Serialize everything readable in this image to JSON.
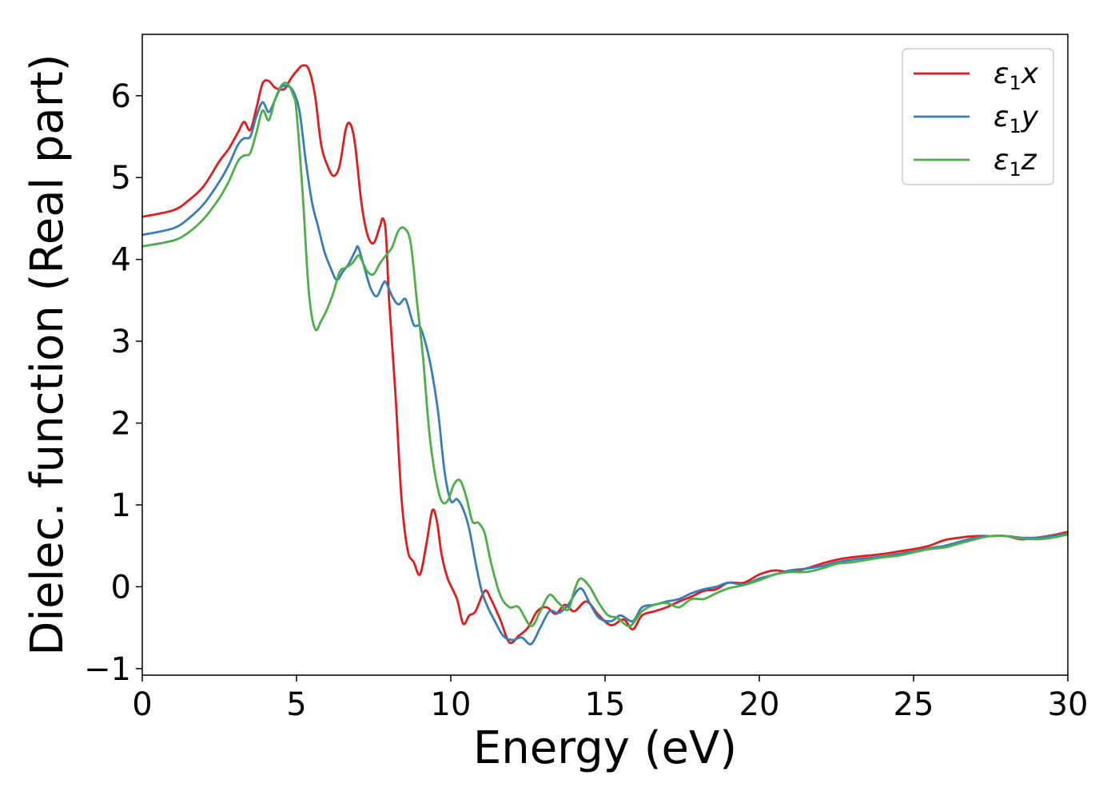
{
  "chart_data": {
    "type": "line",
    "xlabel": "Energy (eV)",
    "ylabel": "Dielec. function (Real part)",
    "xlim": [
      0,
      30
    ],
    "ylim": [
      -1.08,
      6.75
    ],
    "xticks": [
      0,
      5,
      10,
      15,
      20,
      25,
      30
    ],
    "yticks": [
      -1,
      0,
      1,
      2,
      3,
      4,
      5,
      6
    ],
    "xtick_labels": [
      "0",
      "5",
      "10",
      "15",
      "20",
      "25",
      "30"
    ],
    "ytick_labels": [
      "−1",
      "0",
      "1",
      "2",
      "3",
      "4",
      "5",
      "6"
    ],
    "grid": false,
    "legend_position": "top-right",
    "series": [
      {
        "name": "ε1x",
        "legend": {
          "base": "ε",
          "sub": "1",
          "tail": "x"
        },
        "color": "#e41a1c",
        "points": [
          [
            0,
            4.52
          ],
          [
            1.0,
            4.6
          ],
          [
            1.5,
            4.72
          ],
          [
            2.0,
            4.9
          ],
          [
            2.5,
            5.2
          ],
          [
            2.8,
            5.35
          ],
          [
            3.1,
            5.55
          ],
          [
            3.3,
            5.68
          ],
          [
            3.5,
            5.58
          ],
          [
            3.7,
            5.85
          ],
          [
            3.9,
            6.15
          ],
          [
            4.1,
            6.18
          ],
          [
            4.3,
            6.1
          ],
          [
            4.6,
            6.08
          ],
          [
            4.8,
            6.2
          ],
          [
            5.0,
            6.3
          ],
          [
            5.2,
            6.37
          ],
          [
            5.4,
            6.32
          ],
          [
            5.6,
            6.0
          ],
          [
            5.8,
            5.4
          ],
          [
            6.0,
            5.15
          ],
          [
            6.2,
            5.02
          ],
          [
            6.4,
            5.15
          ],
          [
            6.6,
            5.6
          ],
          [
            6.75,
            5.65
          ],
          [
            6.9,
            5.4
          ],
          [
            7.1,
            4.7
          ],
          [
            7.3,
            4.3
          ],
          [
            7.5,
            4.2
          ],
          [
            7.7,
            4.4
          ],
          [
            7.8,
            4.5
          ],
          [
            7.9,
            4.3
          ],
          [
            8.0,
            3.5
          ],
          [
            8.2,
            2.4
          ],
          [
            8.4,
            1.1
          ],
          [
            8.6,
            0.45
          ],
          [
            8.8,
            0.3
          ],
          [
            9.0,
            0.15
          ],
          [
            9.2,
            0.5
          ],
          [
            9.4,
            0.93
          ],
          [
            9.55,
            0.8
          ],
          [
            9.7,
            0.4
          ],
          [
            9.9,
            0.1
          ],
          [
            10.2,
            -0.15
          ],
          [
            10.4,
            -0.45
          ],
          [
            10.6,
            -0.35
          ],
          [
            10.8,
            -0.3
          ],
          [
            11.1,
            -0.05
          ],
          [
            11.3,
            -0.15
          ],
          [
            11.6,
            -0.4
          ],
          [
            11.9,
            -0.68
          ],
          [
            12.2,
            -0.6
          ],
          [
            12.5,
            -0.5
          ],
          [
            12.8,
            -0.3
          ],
          [
            13.1,
            -0.25
          ],
          [
            13.4,
            -0.33
          ],
          [
            13.7,
            -0.22
          ],
          [
            14.0,
            -0.3
          ],
          [
            14.4,
            -0.18
          ],
          [
            14.8,
            -0.35
          ],
          [
            15.2,
            -0.47
          ],
          [
            15.6,
            -0.4
          ],
          [
            15.9,
            -0.52
          ],
          [
            16.2,
            -0.35
          ],
          [
            16.6,
            -0.3
          ],
          [
            17.0,
            -0.25
          ],
          [
            17.4,
            -0.18
          ],
          [
            17.8,
            -0.12
          ],
          [
            18.2,
            -0.05
          ],
          [
            18.6,
            -0.03
          ],
          [
            19.0,
            0.05
          ],
          [
            19.5,
            0.05
          ],
          [
            20.0,
            0.15
          ],
          [
            20.5,
            0.2
          ],
          [
            21.0,
            0.18
          ],
          [
            21.5,
            0.22
          ],
          [
            22.0,
            0.28
          ],
          [
            22.5,
            0.33
          ],
          [
            23.0,
            0.36
          ],
          [
            23.5,
            0.38
          ],
          [
            24.0,
            0.4
          ],
          [
            24.5,
            0.43
          ],
          [
            25.0,
            0.46
          ],
          [
            25.5,
            0.5
          ],
          [
            26.0,
            0.57
          ],
          [
            26.5,
            0.6
          ],
          [
            27.0,
            0.62
          ],
          [
            27.5,
            0.62
          ],
          [
            28.0,
            0.62
          ],
          [
            28.5,
            0.58
          ],
          [
            29.0,
            0.6
          ],
          [
            29.5,
            0.63
          ],
          [
            30.0,
            0.67
          ]
        ]
      },
      {
        "name": "ε1y",
        "legend": {
          "base": "ε",
          "sub": "1",
          "tail": "y"
        },
        "color": "#377eb8",
        "points": [
          [
            0,
            4.3
          ],
          [
            1.0,
            4.38
          ],
          [
            1.5,
            4.5
          ],
          [
            2.0,
            4.68
          ],
          [
            2.5,
            4.95
          ],
          [
            2.8,
            5.15
          ],
          [
            3.1,
            5.4
          ],
          [
            3.3,
            5.48
          ],
          [
            3.5,
            5.5
          ],
          [
            3.7,
            5.75
          ],
          [
            3.9,
            5.92
          ],
          [
            4.1,
            5.8
          ],
          [
            4.3,
            5.95
          ],
          [
            4.5,
            6.1
          ],
          [
            4.7,
            6.12
          ],
          [
            4.9,
            6.05
          ],
          [
            5.1,
            5.8
          ],
          [
            5.3,
            5.2
          ],
          [
            5.5,
            4.7
          ],
          [
            5.7,
            4.4
          ],
          [
            5.9,
            4.1
          ],
          [
            6.1,
            3.9
          ],
          [
            6.3,
            3.75
          ],
          [
            6.5,
            3.85
          ],
          [
            6.7,
            3.95
          ],
          [
            6.9,
            4.1
          ],
          [
            7.0,
            4.15
          ],
          [
            7.2,
            3.9
          ],
          [
            7.4,
            3.65
          ],
          [
            7.6,
            3.55
          ],
          [
            7.8,
            3.7
          ],
          [
            7.9,
            3.72
          ],
          [
            8.1,
            3.55
          ],
          [
            8.3,
            3.45
          ],
          [
            8.5,
            3.52
          ],
          [
            8.6,
            3.45
          ],
          [
            8.8,
            3.2
          ],
          [
            9.0,
            3.18
          ],
          [
            9.2,
            2.95
          ],
          [
            9.4,
            2.6
          ],
          [
            9.6,
            2.1
          ],
          [
            9.8,
            1.4
          ],
          [
            10.0,
            1.05
          ],
          [
            10.2,
            1.07
          ],
          [
            10.4,
            0.95
          ],
          [
            10.6,
            0.7
          ],
          [
            10.8,
            0.3
          ],
          [
            11.0,
            -0.05
          ],
          [
            11.2,
            -0.25
          ],
          [
            11.4,
            -0.4
          ],
          [
            11.7,
            -0.6
          ],
          [
            12.0,
            -0.65
          ],
          [
            12.3,
            -0.62
          ],
          [
            12.6,
            -0.7
          ],
          [
            12.9,
            -0.5
          ],
          [
            13.2,
            -0.3
          ],
          [
            13.5,
            -0.32
          ],
          [
            13.8,
            -0.22
          ],
          [
            14.2,
            -0.02
          ],
          [
            14.5,
            -0.2
          ],
          [
            14.8,
            -0.38
          ],
          [
            15.2,
            -0.42
          ],
          [
            15.5,
            -0.35
          ],
          [
            15.9,
            -0.42
          ],
          [
            16.2,
            -0.25
          ],
          [
            16.6,
            -0.22
          ],
          [
            17.0,
            -0.18
          ],
          [
            17.4,
            -0.15
          ],
          [
            17.8,
            -0.08
          ],
          [
            18.2,
            -0.03
          ],
          [
            18.6,
            0.0
          ],
          [
            19.0,
            0.05
          ],
          [
            19.5,
            0.03
          ],
          [
            20.0,
            0.1
          ],
          [
            20.5,
            0.15
          ],
          [
            21.0,
            0.2
          ],
          [
            21.5,
            0.22
          ],
          [
            22.0,
            0.25
          ],
          [
            22.5,
            0.3
          ],
          [
            23.0,
            0.33
          ],
          [
            23.5,
            0.35
          ],
          [
            24.0,
            0.37
          ],
          [
            24.5,
            0.4
          ],
          [
            25.0,
            0.43
          ],
          [
            25.5,
            0.47
          ],
          [
            26.0,
            0.5
          ],
          [
            26.5,
            0.55
          ],
          [
            27.0,
            0.6
          ],
          [
            27.5,
            0.62
          ],
          [
            28.0,
            0.62
          ],
          [
            28.5,
            0.6
          ],
          [
            29.0,
            0.6
          ],
          [
            29.5,
            0.62
          ],
          [
            30.0,
            0.65
          ]
        ]
      },
      {
        "name": "ε1z",
        "legend": {
          "base": "ε",
          "sub": "1",
          "tail": "z"
        },
        "color": "#4daf4a",
        "points": [
          [
            0,
            4.16
          ],
          [
            1.0,
            4.23
          ],
          [
            1.5,
            4.33
          ],
          [
            2.0,
            4.5
          ],
          [
            2.5,
            4.75
          ],
          [
            2.8,
            4.95
          ],
          [
            3.1,
            5.2
          ],
          [
            3.3,
            5.27
          ],
          [
            3.5,
            5.3
          ],
          [
            3.7,
            5.55
          ],
          [
            3.9,
            5.82
          ],
          [
            4.1,
            5.7
          ],
          [
            4.3,
            5.95
          ],
          [
            4.5,
            6.12
          ],
          [
            4.7,
            6.15
          ],
          [
            4.9,
            6.0
          ],
          [
            5.0,
            5.8
          ],
          [
            5.2,
            4.8
          ],
          [
            5.4,
            3.6
          ],
          [
            5.6,
            3.15
          ],
          [
            5.8,
            3.25
          ],
          [
            6.0,
            3.4
          ],
          [
            6.2,
            3.6
          ],
          [
            6.4,
            3.85
          ],
          [
            6.6,
            3.9
          ],
          [
            6.8,
            3.95
          ],
          [
            7.0,
            4.05
          ],
          [
            7.1,
            4.0
          ],
          [
            7.3,
            3.85
          ],
          [
            7.5,
            3.82
          ],
          [
            7.7,
            3.95
          ],
          [
            7.9,
            4.05
          ],
          [
            8.1,
            4.15
          ],
          [
            8.3,
            4.35
          ],
          [
            8.5,
            4.38
          ],
          [
            8.7,
            4.2
          ],
          [
            8.9,
            3.5
          ],
          [
            9.1,
            2.8
          ],
          [
            9.3,
            1.9
          ],
          [
            9.5,
            1.35
          ],
          [
            9.7,
            1.05
          ],
          [
            9.9,
            1.05
          ],
          [
            10.1,
            1.25
          ],
          [
            10.3,
            1.3
          ],
          [
            10.5,
            1.1
          ],
          [
            10.7,
            0.8
          ],
          [
            10.9,
            0.78
          ],
          [
            11.1,
            0.65
          ],
          [
            11.3,
            0.3
          ],
          [
            11.6,
            -0.1
          ],
          [
            11.9,
            -0.25
          ],
          [
            12.2,
            -0.25
          ],
          [
            12.6,
            -0.48
          ],
          [
            12.9,
            -0.3
          ],
          [
            13.2,
            -0.1
          ],
          [
            13.5,
            -0.2
          ],
          [
            13.8,
            -0.28
          ],
          [
            14.0,
            -0.05
          ],
          [
            14.2,
            0.1
          ],
          [
            14.5,
            0.0
          ],
          [
            14.8,
            -0.2
          ],
          [
            15.1,
            -0.35
          ],
          [
            15.4,
            -0.38
          ],
          [
            15.8,
            -0.48
          ],
          [
            16.2,
            -0.3
          ],
          [
            16.6,
            -0.22
          ],
          [
            17.0,
            -0.2
          ],
          [
            17.4,
            -0.25
          ],
          [
            17.8,
            -0.15
          ],
          [
            18.2,
            -0.15
          ],
          [
            18.6,
            -0.08
          ],
          [
            19.0,
            -0.02
          ],
          [
            19.5,
            0.02
          ],
          [
            20.0,
            0.08
          ],
          [
            20.5,
            0.15
          ],
          [
            21.0,
            0.18
          ],
          [
            21.5,
            0.18
          ],
          [
            22.0,
            0.22
          ],
          [
            22.5,
            0.28
          ],
          [
            23.0,
            0.3
          ],
          [
            23.5,
            0.33
          ],
          [
            24.0,
            0.36
          ],
          [
            24.5,
            0.38
          ],
          [
            25.0,
            0.42
          ],
          [
            25.5,
            0.46
          ],
          [
            26.0,
            0.48
          ],
          [
            26.5,
            0.53
          ],
          [
            27.0,
            0.58
          ],
          [
            27.5,
            0.62
          ],
          [
            28.0,
            0.62
          ],
          [
            28.5,
            0.59
          ],
          [
            29.0,
            0.58
          ],
          [
            29.5,
            0.6
          ],
          [
            30.0,
            0.64
          ]
        ]
      }
    ]
  }
}
